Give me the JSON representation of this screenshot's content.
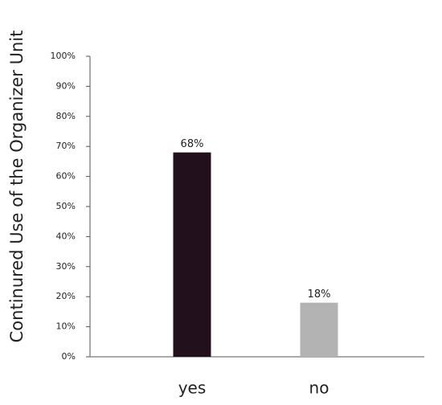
{
  "chart_data": {
    "type": "bar",
    "y_label": "Continured Use of the Organizer Unit",
    "categories": [
      "yes",
      "no"
    ],
    "values": [
      68,
      18
    ],
    "value_labels": [
      "68%",
      "18%"
    ],
    "colors": [
      "#22111d",
      "#b3b3b3"
    ],
    "ylim": [
      0,
      100
    ],
    "yticks": [
      {
        "value": 0,
        "label": "0%"
      },
      {
        "value": 10,
        "label": "10%"
      },
      {
        "value": 20,
        "label": "20%"
      },
      {
        "value": 30,
        "label": "30%"
      },
      {
        "value": 40,
        "label": "40%"
      },
      {
        "value": 50,
        "label": "50%"
      },
      {
        "value": 60,
        "label": "60%"
      },
      {
        "value": 70,
        "label": "70%"
      },
      {
        "value": 80,
        "label": "80%"
      },
      {
        "value": 90,
        "label": "90%"
      },
      {
        "value": 100,
        "label": "100%"
      }
    ],
    "grid": false
  }
}
